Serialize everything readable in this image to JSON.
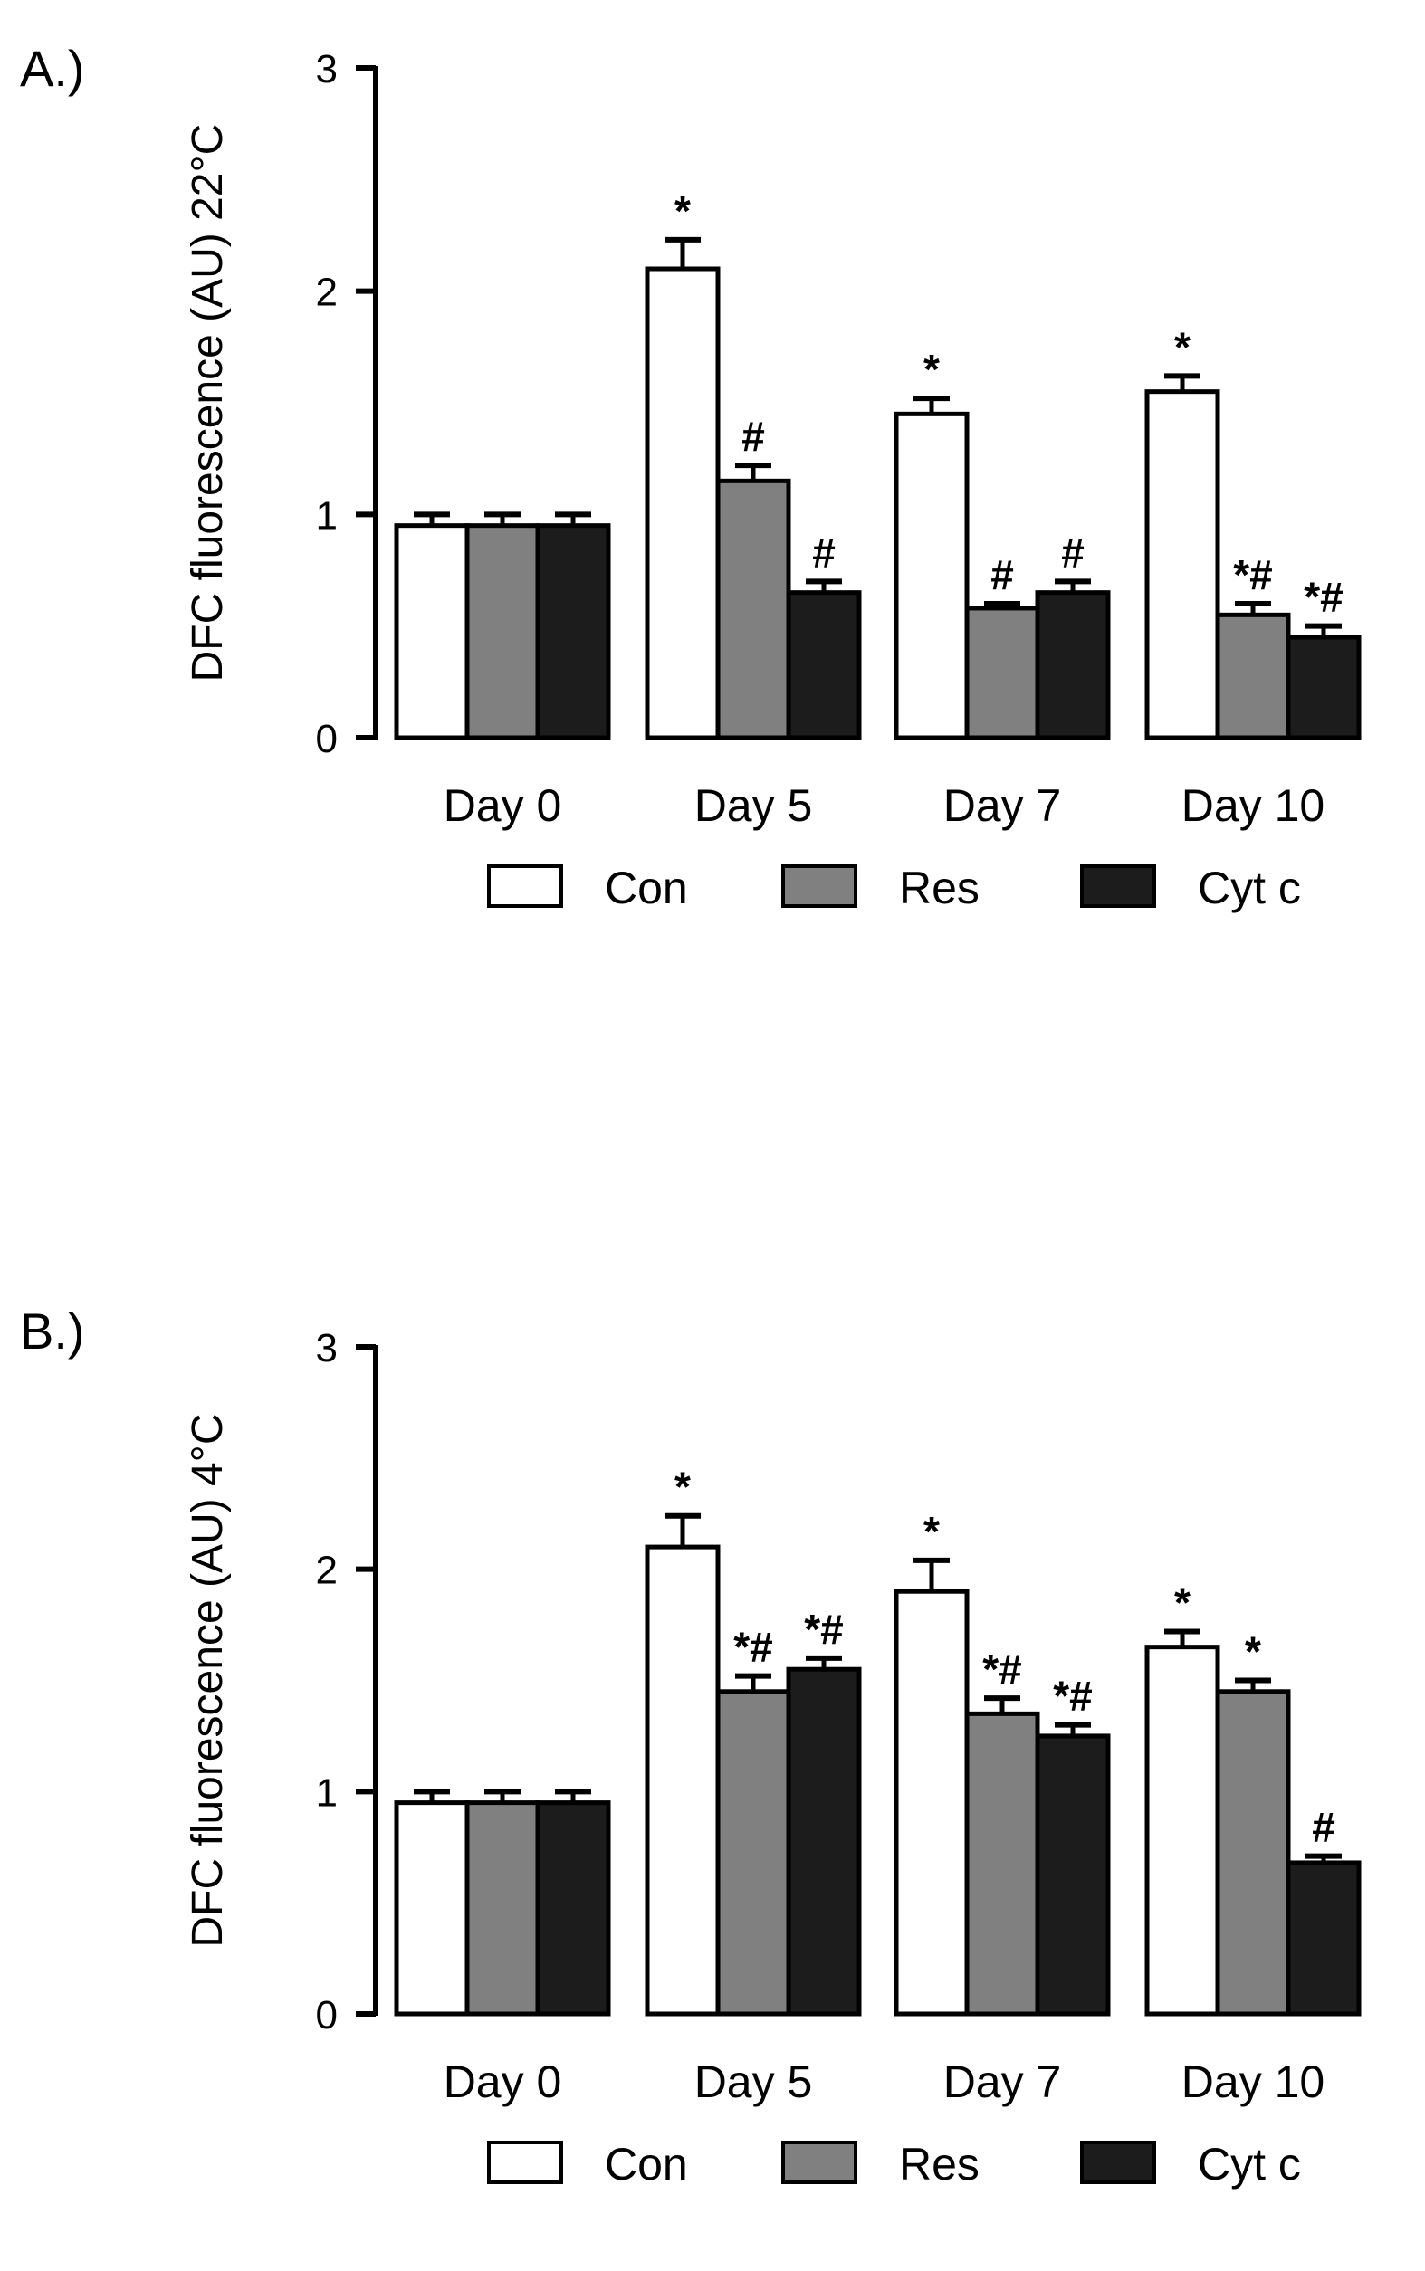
{
  "chart_data": [
    {
      "type": "bar",
      "panel_label": "A.)",
      "ylabel": "DFC fluorescence (AU) 22°C",
      "xlabel": "",
      "ylim": [
        0,
        3
      ],
      "yticks": [
        "0",
        "1",
        "2",
        "3"
      ],
      "grid": false,
      "legend_position": "bottom",
      "categories": [
        "Day 0",
        "Day 5",
        "Day 7",
        "Day 10"
      ],
      "series": [
        {
          "name": "Con",
          "color": "#ffffff",
          "values": [
            0.95,
            2.1,
            1.45,
            1.55
          ],
          "errors": [
            0.05,
            0.13,
            0.07,
            0.07
          ],
          "annotations": [
            "",
            "*",
            "*",
            "*"
          ]
        },
        {
          "name": "Res",
          "color": "#808080",
          "values": [
            0.95,
            1.15,
            0.58,
            0.55
          ],
          "errors": [
            0.05,
            0.07,
            0.02,
            0.05
          ],
          "annotations": [
            "",
            "#",
            "#",
            "*#"
          ]
        },
        {
          "name": "Cyt c",
          "color": "#1c1c1c",
          "values": [
            0.95,
            0.65,
            0.65,
            0.45
          ],
          "errors": [
            0.05,
            0.05,
            0.05,
            0.05
          ],
          "annotations": [
            "",
            "#",
            "#",
            "*#"
          ]
        }
      ]
    },
    {
      "type": "bar",
      "panel_label": "B.)",
      "ylabel": "DFC fluorescence (AU) 4°C",
      "xlabel": "",
      "ylim": [
        0,
        3
      ],
      "yticks": [
        "0",
        "1",
        "2",
        "3"
      ],
      "grid": false,
      "legend_position": "bottom",
      "categories": [
        "Day 0",
        "Day 5",
        "Day 7",
        "Day 10"
      ],
      "series": [
        {
          "name": "Con",
          "color": "#ffffff",
          "values": [
            0.95,
            2.1,
            1.9,
            1.65
          ],
          "errors": [
            0.05,
            0.14,
            0.14,
            0.07
          ],
          "annotations": [
            "",
            "*",
            "*",
            "*"
          ]
        },
        {
          "name": "Res",
          "color": "#808080",
          "values": [
            0.95,
            1.45,
            1.35,
            1.45
          ],
          "errors": [
            0.05,
            0.07,
            0.07,
            0.05
          ],
          "annotations": [
            "",
            "*#",
            "*#",
            "*"
          ]
        },
        {
          "name": "Cyt c",
          "color": "#1c1c1c",
          "values": [
            0.95,
            1.55,
            1.25,
            0.68
          ],
          "errors": [
            0.05,
            0.05,
            0.05,
            0.03
          ],
          "annotations": [
            "",
            "*#",
            "*#",
            "#"
          ]
        }
      ]
    }
  ]
}
